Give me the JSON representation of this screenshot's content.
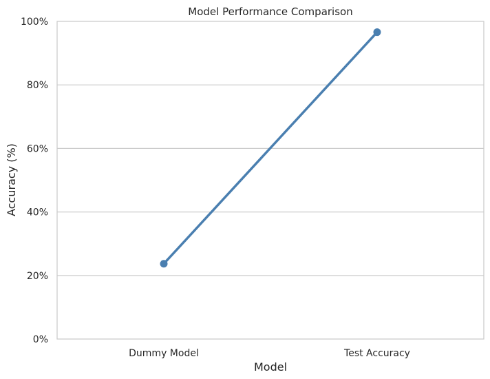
{
  "chart_data": {
    "type": "line",
    "title": "Model Performance Comparison",
    "xlabel": "Model",
    "ylabel": "Accuracy (%)",
    "categories": [
      "Dummy Model",
      "Test Accuracy"
    ],
    "series": [
      {
        "name": "Accuracy",
        "values": [
          23.7,
          96.6
        ]
      }
    ],
    "ylim": [
      0,
      100
    ],
    "yticks": [
      0,
      20,
      40,
      60,
      80,
      100
    ],
    "ytick_labels": [
      "0%",
      "20%",
      "40%",
      "60%",
      "80%",
      "100%"
    ],
    "grid": true,
    "legend": "none",
    "colors": {
      "line": "#4a7fb0",
      "grid": "#cccccc",
      "frame": "#cccccc",
      "text": "#262626",
      "background": "#ffffff"
    }
  }
}
